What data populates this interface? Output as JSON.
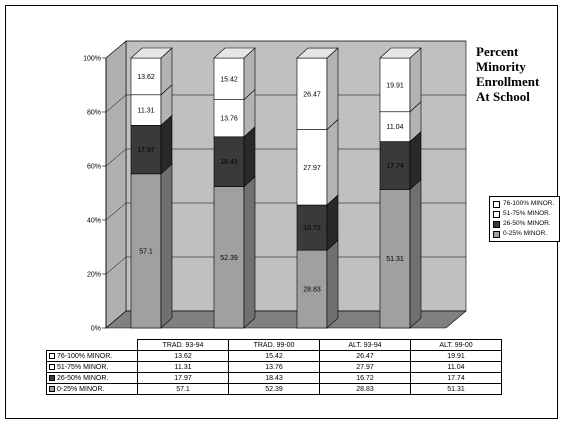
{
  "chart_data": {
    "type": "bar",
    "stacked": true,
    "three_d": true,
    "title_lines": [
      "Percent",
      "Minority",
      "Enrollment",
      "At School"
    ],
    "categories": [
      "TRAD. 93-94",
      "TRAD. 99-00",
      "ALT. 93-94",
      "ALT. 99-00"
    ],
    "series": [
      {
        "name": "0-25% MINOR.",
        "values": [
          57.1,
          52.39,
          28.83,
          51.31
        ],
        "color": "#a0a0a0"
      },
      {
        "name": "26-50% MINOR.",
        "values": [
          17.97,
          18.43,
          16.72,
          17.74
        ],
        "color": "#3a3a3a"
      },
      {
        "name": "51-75% MINOR.",
        "values": [
          11.31,
          13.76,
          27.97,
          11.04
        ],
        "color": "#ffffff"
      },
      {
        "name": "76-100% MINOR.",
        "values": [
          13.62,
          15.42,
          26.47,
          19.91
        ],
        "color": "#ffffff"
      }
    ],
    "value_labels": [
      [
        "57.1",
        "52.39",
        "28.83",
        "51.31"
      ],
      [
        "17.97",
        "18.43",
        "16.72",
        "17.74"
      ],
      [
        "11.31",
        "13.76",
        "27.97",
        "11.04"
      ],
      [
        "13.62",
        "15.42",
        "26.47",
        "19.91"
      ]
    ],
    "y_ticks": [
      "0%",
      "20%",
      "40%",
      "60%",
      "80%",
      "100%"
    ],
    "ylim": [
      0,
      100
    ],
    "legend_position": "right",
    "legend_order": [
      "76-100% MINOR.",
      "51-75% MINOR.",
      "26-50% MINOR.",
      "0-25% MINOR."
    ],
    "table": true,
    "grid": true
  }
}
